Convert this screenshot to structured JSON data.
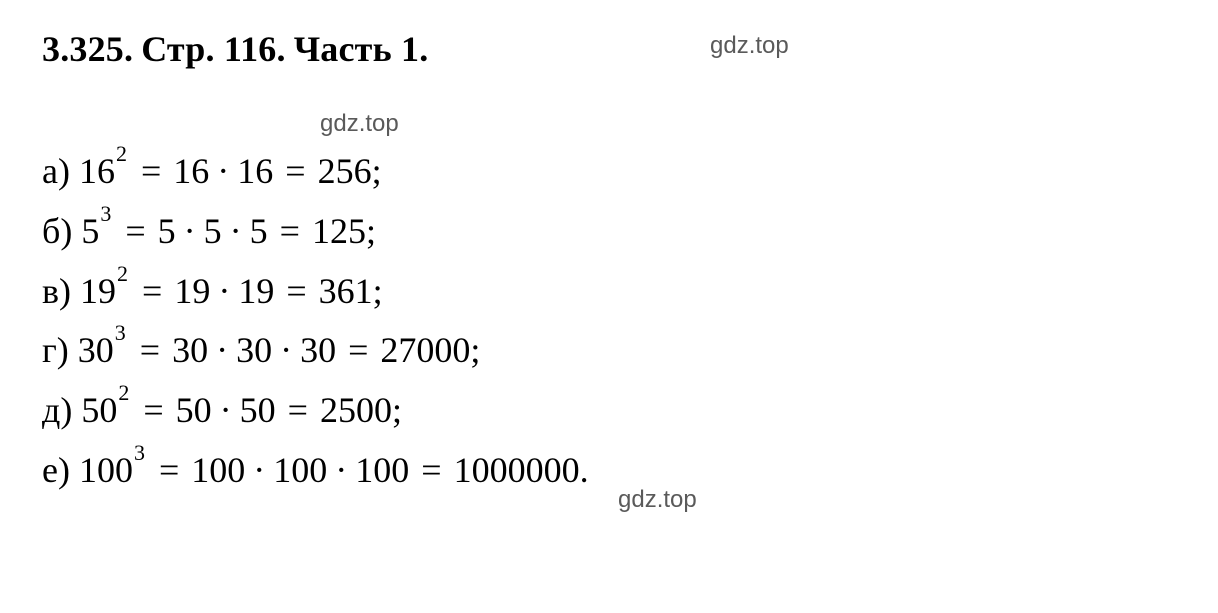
{
  "header": {
    "problem_number": "3.325.",
    "page_label": "Стр. 116.",
    "part_label": "Часть 1."
  },
  "watermarks": {
    "top": "gdz.top",
    "mid": "gdz.top",
    "bot": "gdz.top"
  },
  "colors": {
    "text": "#000000",
    "watermark": "#5a5a5a",
    "background": "#ffffff"
  },
  "typography": {
    "main_font": "Times New Roman",
    "main_fontsize_pt": 27,
    "exponent_fontsize_pt": 16,
    "watermark_font": "Arial",
    "watermark_fontsize_pt": 18,
    "header_weight": "bold"
  },
  "equations": [
    {
      "label": "а)",
      "base": "16",
      "exponent": "2",
      "expansion": [
        "16",
        "16"
      ],
      "result": "256",
      "terminator": ";"
    },
    {
      "label": "б)",
      "base": "5",
      "exponent": "3",
      "expansion": [
        "5",
        "5",
        "5"
      ],
      "result": "125",
      "terminator": ";"
    },
    {
      "label": "в)",
      "base": "19",
      "exponent": "2",
      "expansion": [
        "19",
        "19"
      ],
      "result": "361",
      "terminator": ";"
    },
    {
      "label": "г)",
      "base": "30",
      "exponent": "3",
      "expansion": [
        "30",
        "30",
        "30"
      ],
      "result": "27000",
      "terminator": ";"
    },
    {
      "label": "д)",
      "base": "50",
      "exponent": "2",
      "expansion": [
        "50",
        "50"
      ],
      "result": "2500",
      "terminator": ";"
    },
    {
      "label": "е)",
      "base": "100",
      "exponent": "3",
      "expansion": [
        "100",
        "100",
        "100"
      ],
      "result": "1000000",
      "terminator": "."
    }
  ]
}
